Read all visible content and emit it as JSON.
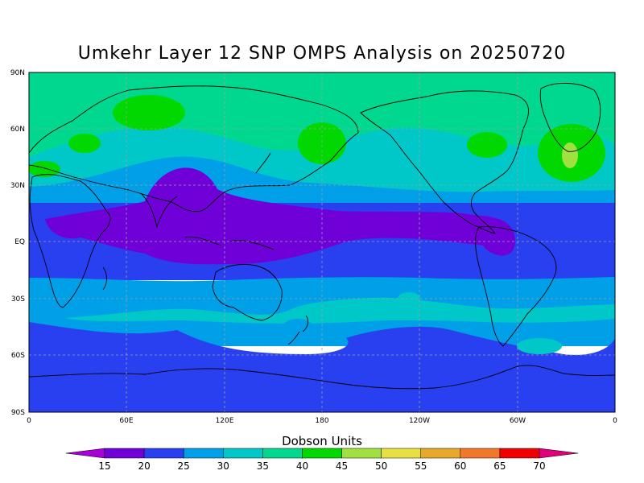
{
  "title": "Umkehr Layer 12 SNP OMPS Analysis on 20250720",
  "colorbar": {
    "label": "Dobson Units",
    "levels": [
      "15",
      "20",
      "25",
      "30",
      "35",
      "40",
      "45",
      "50",
      "55",
      "60",
      "65",
      "70"
    ],
    "colors": [
      "#a800d8",
      "#7000d8",
      "#2840f0",
      "#00a0e8",
      "#00c8c8",
      "#00d890",
      "#00d800",
      "#a0e040",
      "#e8e040",
      "#e8a828",
      "#f07828",
      "#f00000",
      "#e0007a"
    ]
  },
  "map": {
    "lat_labels": [
      "90N",
      "60N",
      "30N",
      "EQ",
      "30S",
      "60S",
      "90S"
    ],
    "lon_labels": [
      "0",
      "60E",
      "120E",
      "180",
      "120W",
      "60W",
      "0"
    ]
  },
  "field_colors": {
    "band_60_90N": "#00d890",
    "band_mid_north": "#00c8c8",
    "band_north_sub": "#00a0e8",
    "band_tropics": "#2840f0",
    "band_tropical_low": "#7000d8",
    "band_south_sub": "#00a0e8",
    "band_south_mid": "#00c8c8",
    "band_south_high": "#2840f0",
    "high_patches": "#00d800",
    "peak_patch": "#a0e040",
    "southern_low": "#a800d8"
  }
}
